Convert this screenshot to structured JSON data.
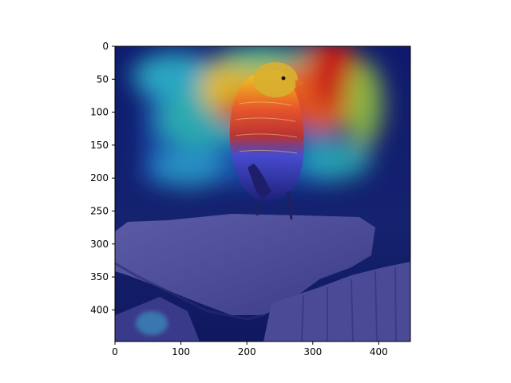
{
  "figure": {
    "image_description_label": "Bird on rock with Grad-CAM heatmap overlay",
    "x_axis": {
      "ticks": [
        0,
        100,
        200,
        300,
        400
      ],
      "range": [
        0,
        448
      ]
    },
    "y_axis": {
      "ticks": [
        0,
        50,
        100,
        150,
        200,
        250,
        300,
        350,
        400
      ],
      "range": [
        0,
        448
      ]
    }
  }
}
